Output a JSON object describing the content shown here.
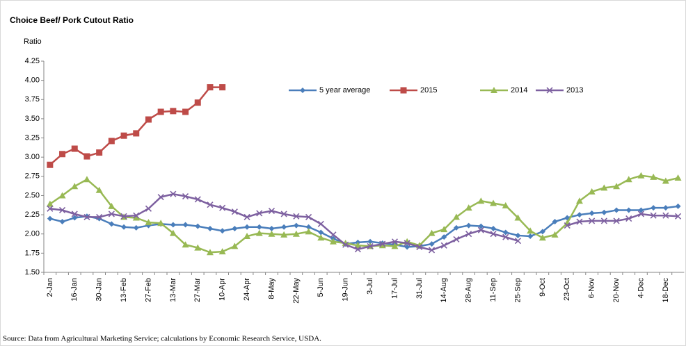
{
  "chart_data": {
    "type": "line",
    "title": "Choice Beef/ Pork Cutout Ratio",
    "y_label": "Ratio",
    "source": "Source: Data from Agricultural Marketing Service; calculations by Economic Research Service, USDA.",
    "categories": [
      "2-Jan",
      null,
      "16-Jan",
      null,
      "30-Jan",
      null,
      "13-Feb",
      null,
      "27-Feb",
      null,
      "13-Mar",
      null,
      "27-Mar",
      null,
      "10-Apr",
      null,
      "24-Apr",
      null,
      "8-May",
      null,
      "22-May",
      null,
      "5-Jun",
      null,
      "19-Jun",
      null,
      "3-Jul",
      null,
      "17-Jul",
      null,
      "31-Jul",
      null,
      "14-Aug",
      null,
      "28-Aug",
      null,
      "11-Sep",
      null,
      "25-Sep",
      null,
      "9-Oct",
      null,
      "23-Oct",
      null,
      "6-Nov",
      null,
      "20-Nov",
      null,
      "4-Dec",
      null,
      "18-Dec",
      null
    ],
    "ylim": [
      1.5,
      4.25
    ],
    "yticks": [
      {
        "value": 1.5,
        "label": "1.50"
      },
      {
        "value": 1.75,
        "label": "1.75"
      },
      {
        "value": 2,
        "label": "2.00"
      },
      {
        "value": 2.25,
        "label": "2.25"
      },
      {
        "value": 2.5,
        "label": "2.50"
      },
      {
        "value": 2.75,
        "label": "2.75"
      },
      {
        "value": 3,
        "label": "3.00"
      },
      {
        "value": 3.25,
        "label": "3.25"
      },
      {
        "value": 3.5,
        "label": "3.50"
      },
      {
        "value": 3.75,
        "label": "3.75"
      },
      {
        "value": 4,
        "label": "4.00"
      },
      {
        "value": 4.25,
        "label": "4.25"
      }
    ],
    "grid": false,
    "series": [
      {
        "name": "5 year average",
        "color": "#4a7ebb",
        "marker": "diamond",
        "values": [
          2.2,
          2.16,
          2.21,
          2.23,
          2.2,
          2.13,
          2.09,
          2.08,
          2.11,
          2.13,
          2.12,
          2.12,
          2.1,
          2.07,
          2.04,
          2.07,
          2.09,
          2.09,
          2.07,
          2.09,
          2.11,
          2.09,
          2.02,
          1.94,
          1.87,
          1.89,
          1.9,
          1.88,
          1.86,
          1.83,
          1.84,
          1.87,
          1.96,
          2.08,
          2.11,
          2.1,
          2.07,
          2.02,
          1.98,
          1.97,
          2.03,
          2.16,
          2.21,
          2.25,
          2.27,
          2.28,
          2.31,
          2.31,
          2.31,
          2.34,
          2.34,
          2.36
        ]
      },
      {
        "name": "2015",
        "color": "#be4b48",
        "marker": "square",
        "values": [
          2.9,
          3.04,
          3.11,
          3.01,
          3.06,
          3.21,
          3.28,
          3.31,
          3.49,
          3.59,
          3.6,
          3.59,
          3.71,
          3.91,
          3.91,
          null,
          null,
          null,
          null,
          null,
          null,
          null,
          null,
          null,
          null,
          null,
          null,
          null,
          null,
          null,
          null,
          null,
          null,
          null,
          null,
          null,
          null,
          null,
          null,
          null,
          null,
          null,
          null,
          null,
          null,
          null,
          null,
          null,
          null,
          null,
          null,
          null
        ]
      },
      {
        "name": "2014",
        "color": "#98b954",
        "marker": "triangle",
        "values": [
          2.39,
          2.5,
          2.62,
          2.71,
          2.57,
          2.36,
          2.22,
          2.21,
          2.15,
          2.14,
          2.01,
          1.86,
          1.82,
          1.76,
          1.77,
          1.84,
          1.97,
          2.01,
          2.0,
          1.99,
          2.0,
          2.03,
          1.95,
          1.9,
          1.88,
          1.85,
          1.84,
          1.85,
          1.84,
          1.9,
          1.85,
          2.01,
          2.06,
          2.22,
          2.34,
          2.43,
          2.4,
          2.37,
          2.21,
          2.04,
          1.95,
          1.99,
          2.14,
          2.43,
          2.55,
          2.6,
          2.62,
          2.71,
          2.76,
          2.74,
          2.69,
          2.73
        ]
      },
      {
        "name": "2013",
        "color": "#7d60a0",
        "marker": "x",
        "values": [
          2.33,
          2.31,
          2.26,
          2.22,
          2.22,
          2.26,
          2.23,
          2.24,
          2.33,
          2.48,
          2.52,
          2.49,
          2.45,
          2.38,
          2.34,
          2.29,
          2.22,
          2.27,
          2.3,
          2.26,
          2.23,
          2.22,
          2.13,
          1.99,
          1.86,
          1.8,
          1.84,
          1.87,
          1.9,
          1.88,
          1.83,
          1.79,
          1.85,
          1.93,
          2.0,
          2.05,
          2.0,
          1.96,
          1.91,
          null,
          null,
          null,
          2.11,
          2.16,
          2.17,
          2.17,
          2.17,
          2.2,
          2.26,
          2.24,
          2.24,
          2.23
        ]
      }
    ]
  }
}
